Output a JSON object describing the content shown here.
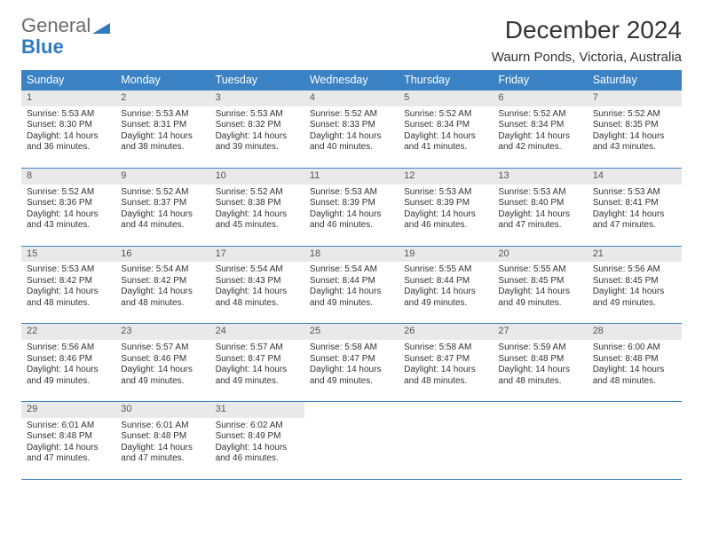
{
  "brand": {
    "line1": "General",
    "line2": "Blue"
  },
  "colors": {
    "header_bg": "#3a82c4",
    "header_text": "#ffffff",
    "daynum_bg": "#e9e9e9",
    "border": "#3a82c4",
    "logo_gray": "#6b6b6b",
    "logo_blue": "#2f7bc0"
  },
  "title": "December 2024",
  "location": "Waurn Ponds, Victoria, Australia",
  "weekdays": [
    "Sunday",
    "Monday",
    "Tuesday",
    "Wednesday",
    "Thursday",
    "Friday",
    "Saturday"
  ],
  "days": [
    {
      "n": 1,
      "sr": "5:53 AM",
      "ss": "8:30 PM",
      "dl": "14 hours and 36 minutes."
    },
    {
      "n": 2,
      "sr": "5:53 AM",
      "ss": "8:31 PM",
      "dl": "14 hours and 38 minutes."
    },
    {
      "n": 3,
      "sr": "5:53 AM",
      "ss": "8:32 PM",
      "dl": "14 hours and 39 minutes."
    },
    {
      "n": 4,
      "sr": "5:52 AM",
      "ss": "8:33 PM",
      "dl": "14 hours and 40 minutes."
    },
    {
      "n": 5,
      "sr": "5:52 AM",
      "ss": "8:34 PM",
      "dl": "14 hours and 41 minutes."
    },
    {
      "n": 6,
      "sr": "5:52 AM",
      "ss": "8:34 PM",
      "dl": "14 hours and 42 minutes."
    },
    {
      "n": 7,
      "sr": "5:52 AM",
      "ss": "8:35 PM",
      "dl": "14 hours and 43 minutes."
    },
    {
      "n": 8,
      "sr": "5:52 AM",
      "ss": "8:36 PM",
      "dl": "14 hours and 43 minutes."
    },
    {
      "n": 9,
      "sr": "5:52 AM",
      "ss": "8:37 PM",
      "dl": "14 hours and 44 minutes."
    },
    {
      "n": 10,
      "sr": "5:52 AM",
      "ss": "8:38 PM",
      "dl": "14 hours and 45 minutes."
    },
    {
      "n": 11,
      "sr": "5:53 AM",
      "ss": "8:39 PM",
      "dl": "14 hours and 46 minutes."
    },
    {
      "n": 12,
      "sr": "5:53 AM",
      "ss": "8:39 PM",
      "dl": "14 hours and 46 minutes."
    },
    {
      "n": 13,
      "sr": "5:53 AM",
      "ss": "8:40 PM",
      "dl": "14 hours and 47 minutes."
    },
    {
      "n": 14,
      "sr": "5:53 AM",
      "ss": "8:41 PM",
      "dl": "14 hours and 47 minutes."
    },
    {
      "n": 15,
      "sr": "5:53 AM",
      "ss": "8:42 PM",
      "dl": "14 hours and 48 minutes."
    },
    {
      "n": 16,
      "sr": "5:54 AM",
      "ss": "8:42 PM",
      "dl": "14 hours and 48 minutes."
    },
    {
      "n": 17,
      "sr": "5:54 AM",
      "ss": "8:43 PM",
      "dl": "14 hours and 48 minutes."
    },
    {
      "n": 18,
      "sr": "5:54 AM",
      "ss": "8:44 PM",
      "dl": "14 hours and 49 minutes."
    },
    {
      "n": 19,
      "sr": "5:55 AM",
      "ss": "8:44 PM",
      "dl": "14 hours and 49 minutes."
    },
    {
      "n": 20,
      "sr": "5:55 AM",
      "ss": "8:45 PM",
      "dl": "14 hours and 49 minutes."
    },
    {
      "n": 21,
      "sr": "5:56 AM",
      "ss": "8:45 PM",
      "dl": "14 hours and 49 minutes."
    },
    {
      "n": 22,
      "sr": "5:56 AM",
      "ss": "8:46 PM",
      "dl": "14 hours and 49 minutes."
    },
    {
      "n": 23,
      "sr": "5:57 AM",
      "ss": "8:46 PM",
      "dl": "14 hours and 49 minutes."
    },
    {
      "n": 24,
      "sr": "5:57 AM",
      "ss": "8:47 PM",
      "dl": "14 hours and 49 minutes."
    },
    {
      "n": 25,
      "sr": "5:58 AM",
      "ss": "8:47 PM",
      "dl": "14 hours and 49 minutes."
    },
    {
      "n": 26,
      "sr": "5:58 AM",
      "ss": "8:47 PM",
      "dl": "14 hours and 48 minutes."
    },
    {
      "n": 27,
      "sr": "5:59 AM",
      "ss": "8:48 PM",
      "dl": "14 hours and 48 minutes."
    },
    {
      "n": 28,
      "sr": "6:00 AM",
      "ss": "8:48 PM",
      "dl": "14 hours and 48 minutes."
    },
    {
      "n": 29,
      "sr": "6:01 AM",
      "ss": "8:48 PM",
      "dl": "14 hours and 47 minutes."
    },
    {
      "n": 30,
      "sr": "6:01 AM",
      "ss": "8:48 PM",
      "dl": "14 hours and 47 minutes."
    },
    {
      "n": 31,
      "sr": "6:02 AM",
      "ss": "8:49 PM",
      "dl": "14 hours and 46 minutes."
    }
  ],
  "labels": {
    "sunrise": "Sunrise:",
    "sunset": "Sunset:",
    "daylight": "Daylight:"
  },
  "start_weekday": 0,
  "trailing_blank": 4
}
